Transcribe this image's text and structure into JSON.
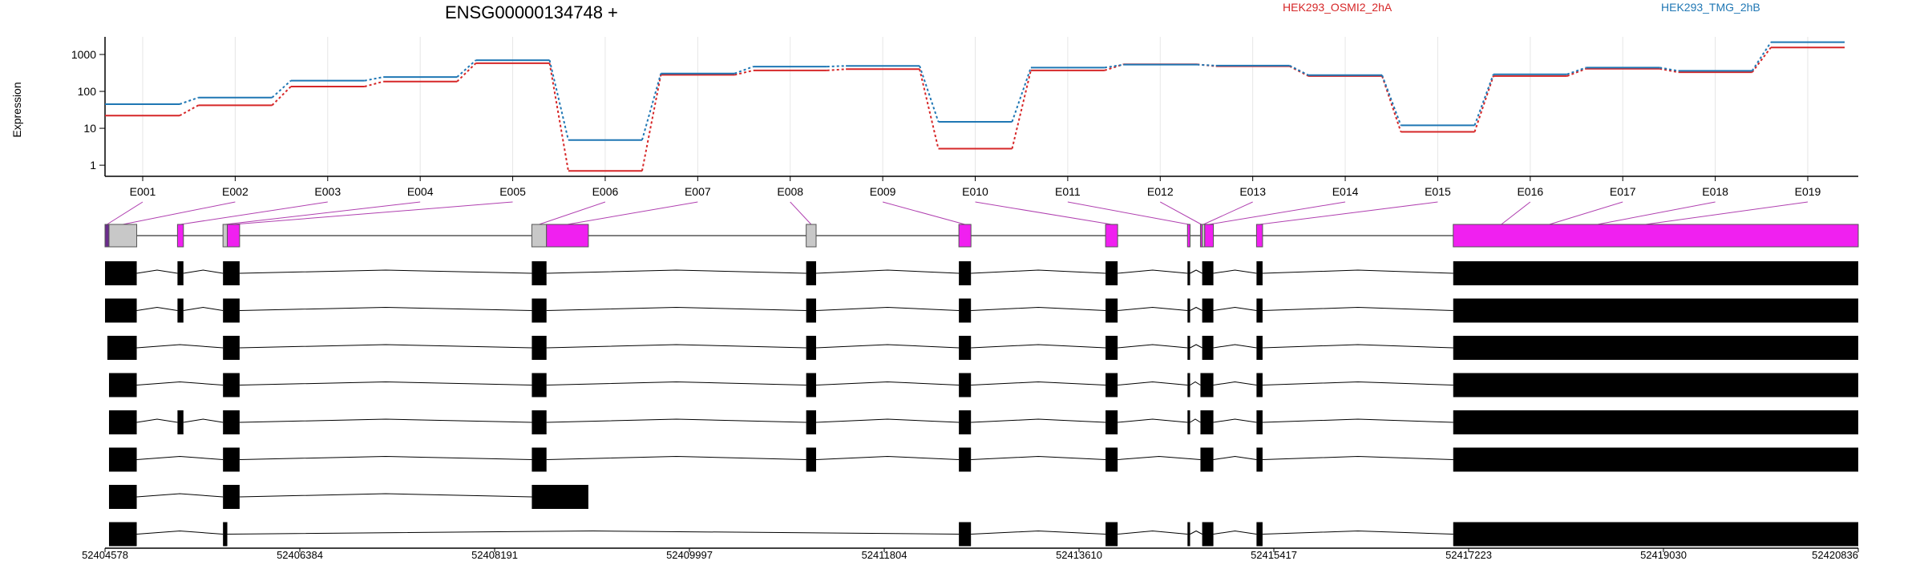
{
  "chart_data": {
    "type": "line",
    "title": "ENSG00000134748 +",
    "ylabel": "Expression",
    "xlabel": "",
    "y_scale": "log",
    "ylim": [
      0.5,
      3000
    ],
    "yticks": [
      1,
      10,
      100,
      1000
    ],
    "ytick_labels": [
      "1",
      "10",
      "100",
      "1000"
    ],
    "grid": "vertical",
    "legend_placement": "top",
    "categories": [
      "E001",
      "E002",
      "E003",
      "E004",
      "E005",
      "E006",
      "E007",
      "E008",
      "E009",
      "E010",
      "E011",
      "E012",
      "E013",
      "E014",
      "E015",
      "E016",
      "E017",
      "E018",
      "E019"
    ],
    "series": [
      {
        "name": "HEK293_OSMI2_2hA",
        "color": "#d62728",
        "values": [
          22,
          42,
          135,
          185,
          580,
          0.7,
          280,
          370,
          400,
          2.8,
          370,
          540,
          480,
          260,
          8,
          260,
          410,
          330,
          1550
        ]
      },
      {
        "name": "HEK293_TMG_2hB",
        "color": "#1f77b4",
        "values": [
          45,
          68,
          195,
          245,
          700,
          4.8,
          305,
          470,
          490,
          15,
          440,
          530,
          500,
          275,
          12,
          290,
          440,
          360,
          2150
        ]
      }
    ],
    "genomic_axis": {
      "start": 52404578,
      "end": 52420836,
      "tick_labels": [
        "52404578",
        "52406384",
        "52408191",
        "52409997",
        "52411804",
        "52413610",
        "52415417",
        "52417223",
        "52419030",
        "52420836"
      ]
    },
    "exon_bins": [
      {
        "id": "E001",
        "start": 52404578,
        "end": 52404615,
        "color": "#6b2c8c"
      },
      {
        "id": "E002",
        "start": 52404615,
        "end": 52404872,
        "color": "#c8c8c8"
      },
      {
        "id": "E003",
        "start": 52405250,
        "end": 52405305,
        "color": "#f020f0"
      },
      {
        "id": "E004",
        "start": 52405672,
        "end": 52405712,
        "color": "#c8c8c8"
      },
      {
        "id": "E005",
        "start": 52405712,
        "end": 52405826,
        "color": "#f020f0"
      },
      {
        "id": "E006",
        "start": 52408536,
        "end": 52408672,
        "color": "#c8c8c8"
      },
      {
        "id": "E007",
        "start": 52408672,
        "end": 52409060,
        "color": "#f020f0"
      },
      {
        "id": "E008",
        "start": 52411080,
        "end": 52411172,
        "color": "#c8c8c8"
      },
      {
        "id": "E009",
        "start": 52412496,
        "end": 52412608,
        "color": "#f020f0"
      },
      {
        "id": "E010",
        "start": 52413856,
        "end": 52413968,
        "color": "#f020f0"
      },
      {
        "id": "E011",
        "start": 52414616,
        "end": 52414640,
        "color": "#f020f0"
      },
      {
        "id": "E012",
        "start": 52414736,
        "end": 52414752,
        "color": "#f020f0"
      },
      {
        "id": "E013",
        "start": 52414752,
        "end": 52414776,
        "color": "#c8c8c8"
      },
      {
        "id": "E014",
        "start": 52414776,
        "end": 52414856,
        "color": "#f020f0"
      },
      {
        "id": "E015",
        "start": 52415256,
        "end": 52415312,
        "color": "#f020f0"
      },
      {
        "id": "E016",
        "start": 52417080,
        "end": 52420836,
        "color": "#f020f0"
      },
      {
        "id": "E017",
        "start": 52417080,
        "end": 52420836,
        "color": "#f020f0"
      },
      {
        "id": "E018",
        "start": 52417080,
        "end": 52420836,
        "color": "#f020f0"
      },
      {
        "id": "E019",
        "start": 52417080,
        "end": 52420836,
        "color": "#f020f0"
      }
    ],
    "transcripts": [
      {
        "exons": [
          [
            52404578,
            52404872
          ],
          [
            52405250,
            52405305
          ],
          [
            52405672,
            52405826
          ],
          [
            52408536,
            52408672
          ],
          [
            52411080,
            52411172
          ],
          [
            52412496,
            52412608
          ],
          [
            52413856,
            52413968
          ],
          [
            52414616,
            52414640
          ],
          [
            52414752,
            52414856
          ],
          [
            52415256,
            52415312
          ],
          [
            52417080,
            52420836
          ]
        ]
      },
      {
        "exons": [
          [
            52404578,
            52404872
          ],
          [
            52405250,
            52405305
          ],
          [
            52405672,
            52405826
          ],
          [
            52408536,
            52408672
          ],
          [
            52411080,
            52411172
          ],
          [
            52412496,
            52412608
          ],
          [
            52413856,
            52413968
          ],
          [
            52414616,
            52414640
          ],
          [
            52414752,
            52414856
          ],
          [
            52415256,
            52415312
          ],
          [
            52417080,
            52420836
          ]
        ]
      },
      {
        "exons": [
          [
            52404600,
            52404872
          ],
          [
            52405672,
            52405826
          ],
          [
            52408536,
            52408672
          ],
          [
            52411080,
            52411172
          ],
          [
            52412496,
            52412608
          ],
          [
            52413856,
            52413968
          ],
          [
            52414616,
            52414640
          ],
          [
            52414752,
            52414856
          ],
          [
            52415256,
            52415312
          ],
          [
            52417080,
            52420836
          ]
        ]
      },
      {
        "exons": [
          [
            52404615,
            52404872
          ],
          [
            52405672,
            52405826
          ],
          [
            52408536,
            52408672
          ],
          [
            52411080,
            52411172
          ],
          [
            52412496,
            52412608
          ],
          [
            52413856,
            52413968
          ],
          [
            52414616,
            52414640
          ],
          [
            52414736,
            52414856
          ],
          [
            52415256,
            52415312
          ],
          [
            52417080,
            52420836
          ]
        ]
      },
      {
        "exons": [
          [
            52404615,
            52404872
          ],
          [
            52405250,
            52405305
          ],
          [
            52405672,
            52405826
          ],
          [
            52408536,
            52408672
          ],
          [
            52411080,
            52411172
          ],
          [
            52412496,
            52412608
          ],
          [
            52413856,
            52413968
          ],
          [
            52414616,
            52414640
          ],
          [
            52414736,
            52414856
          ],
          [
            52415256,
            52415312
          ],
          [
            52417080,
            52420836
          ]
        ]
      },
      {
        "exons": [
          [
            52404615,
            52404872
          ],
          [
            52405672,
            52405826
          ],
          [
            52408536,
            52408672
          ],
          [
            52411080,
            52411172
          ],
          [
            52412496,
            52412608
          ],
          [
            52413856,
            52413968
          ],
          [
            52414736,
            52414856
          ],
          [
            52415256,
            52415312
          ],
          [
            52417080,
            52420836
          ]
        ]
      },
      {
        "exons": [
          [
            52404615,
            52404872
          ],
          [
            52405672,
            52405826
          ],
          [
            52408536,
            52409060
          ]
        ]
      },
      {
        "exons": [
          [
            52404615,
            52404872
          ],
          [
            52405672,
            52405712
          ],
          [
            52412496,
            52412608
          ],
          [
            52413856,
            52413968
          ],
          [
            52414616,
            52414640
          ],
          [
            52414752,
            52414856
          ],
          [
            52415256,
            52415312
          ],
          [
            52417080,
            52420836
          ]
        ]
      }
    ]
  }
}
